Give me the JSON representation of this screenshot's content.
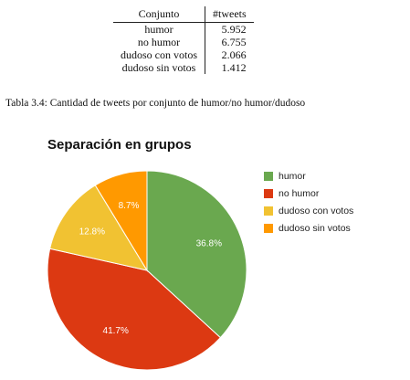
{
  "table": {
    "headers": [
      "Conjunto",
      "#tweets"
    ],
    "rows": [
      [
        "humor",
        "5.952"
      ],
      [
        "no humor",
        "6.755"
      ],
      [
        "dudoso con votos",
        "2.066"
      ],
      [
        "dudoso sin votos",
        "1.412"
      ]
    ],
    "caption": "Tabla 3.4: Cantidad de tweets por conjunto de humor/no humor/dudoso"
  },
  "chart_data": {
    "type": "pie",
    "title": "Separación en grupos",
    "legend_position": "right",
    "slices": [
      {
        "label": "humor",
        "value": 36.8,
        "display": "36.8%",
        "color": "#6aa84f"
      },
      {
        "label": "no humor",
        "value": 41.7,
        "display": "41.7%",
        "color": "#dc3912"
      },
      {
        "label": "dudoso con votos",
        "value": 12.8,
        "display": "12.8%",
        "color": "#f1c232"
      },
      {
        "label": "dudoso sin votos",
        "value": 8.7,
        "display": "8.7%",
        "color": "#ff9900"
      }
    ]
  }
}
